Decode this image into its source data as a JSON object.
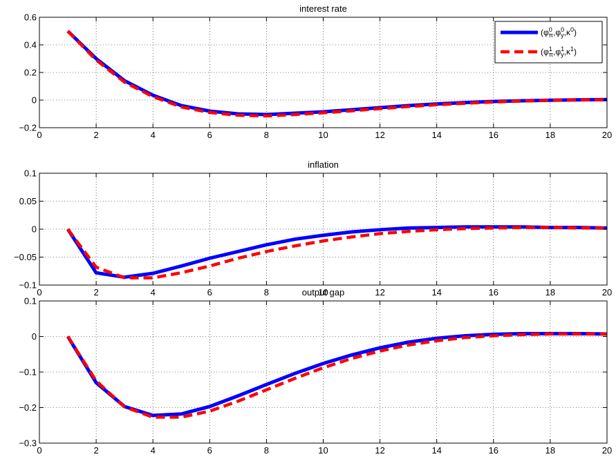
{
  "legend": {
    "placement": "top-right",
    "entries": [
      {
        "base": "(φ",
        "sup_pi": "0",
        "sub_pi": "π",
        "comma1": ",φ",
        "sup_y": "0",
        "sub_y": "y",
        "comma2": ",κ",
        "sup_k": "0",
        "close": ")",
        "color": "#0000ff",
        "style": "solid"
      },
      {
        "base": "(φ",
        "sup_pi": "1",
        "sub_pi": "π",
        "comma1": ",φ",
        "sup_y": "1",
        "sub_y": "y",
        "comma2": ",κ",
        "sup_k": "1",
        "close": ")",
        "color": "#ff0000",
        "style": "dashed"
      }
    ]
  },
  "chart_data": [
    {
      "type": "line",
      "title": "interest rate",
      "xlim": [
        0,
        20
      ],
      "ylim": [
        -0.2,
        0.6
      ],
      "xticks": [
        0,
        2,
        4,
        6,
        8,
        10,
        12,
        14,
        16,
        18,
        20
      ],
      "yticks": [
        -0.2,
        0,
        0.2,
        0.4,
        0.6
      ],
      "ytick_labels": [
        "−0.2",
        "0",
        "0.2",
        "0.4",
        "0.6"
      ],
      "grid": true,
      "x": [
        1,
        2,
        3,
        4,
        5,
        6,
        7,
        8,
        9,
        10,
        11,
        12,
        13,
        14,
        15,
        16,
        17,
        18,
        19,
        20
      ],
      "series": [
        {
          "color": "#0000ff",
          "style": "solid",
          "values": [
            0.5,
            0.3,
            0.14,
            0.035,
            -0.04,
            -0.08,
            -0.1,
            -0.105,
            -0.095,
            -0.085,
            -0.07,
            -0.055,
            -0.04,
            -0.028,
            -0.018,
            -0.01,
            -0.005,
            -0.001,
            0.002,
            0.004
          ]
        },
        {
          "color": "#ff0000",
          "style": "dashed",
          "values": [
            0.5,
            0.29,
            0.13,
            0.025,
            -0.05,
            -0.09,
            -0.11,
            -0.115,
            -0.105,
            -0.092,
            -0.078,
            -0.062,
            -0.047,
            -0.034,
            -0.023,
            -0.014,
            -0.007,
            -0.002,
            0.001,
            0.003
          ]
        }
      ]
    },
    {
      "type": "line",
      "title": "inflation",
      "xlim": [
        0,
        20
      ],
      "ylim": [
        -0.1,
        0.1
      ],
      "xticks": [
        0,
        2,
        4,
        6,
        8,
        10,
        12,
        14,
        16,
        18,
        20
      ],
      "yticks": [
        -0.1,
        -0.05,
        0,
        0.05,
        0.1
      ],
      "ytick_labels": [
        "−0.1",
        "−0.05",
        "0",
        "0.05",
        "0.1"
      ],
      "grid": true,
      "x": [
        1,
        2,
        3,
        4,
        5,
        6,
        7,
        8,
        9,
        10,
        11,
        12,
        13,
        14,
        15,
        16,
        17,
        18,
        19,
        20
      ],
      "series": [
        {
          "color": "#0000ff",
          "style": "solid",
          "values": [
            0,
            -0.078,
            -0.086,
            -0.079,
            -0.066,
            -0.052,
            -0.04,
            -0.028,
            -0.018,
            -0.011,
            -0.005,
            -0.001,
            0.002,
            0.003,
            0.004,
            0.004,
            0.004,
            0.003,
            0.003,
            0.002
          ]
        },
        {
          "color": "#ff0000",
          "style": "dashed",
          "values": [
            0,
            -0.068,
            -0.087,
            -0.087,
            -0.078,
            -0.066,
            -0.052,
            -0.04,
            -0.03,
            -0.021,
            -0.014,
            -0.008,
            -0.004,
            -0.001,
            0.001,
            0.002,
            0.003,
            0.003,
            0.002,
            0.002
          ]
        }
      ]
    },
    {
      "type": "line",
      "title": "output gap",
      "xlim": [
        0,
        20
      ],
      "ylim": [
        -0.3,
        0.1
      ],
      "xticks": [
        0,
        2,
        4,
        6,
        8,
        10,
        12,
        14,
        16,
        18,
        20
      ],
      "yticks": [
        -0.3,
        -0.2,
        -0.1,
        0,
        0.1
      ],
      "ytick_labels": [
        "−0.3",
        "−0.2",
        "−0.1",
        "0",
        "0.1"
      ],
      "grid": true,
      "x": [
        1,
        2,
        3,
        4,
        5,
        6,
        7,
        8,
        9,
        10,
        11,
        12,
        13,
        14,
        15,
        16,
        17,
        18,
        19,
        20
      ],
      "series": [
        {
          "color": "#0000ff",
          "style": "solid",
          "values": [
            0,
            -0.13,
            -0.197,
            -0.222,
            -0.218,
            -0.197,
            -0.167,
            -0.135,
            -0.104,
            -0.076,
            -0.052,
            -0.032,
            -0.016,
            -0.005,
            0.002,
            0.006,
            0.008,
            0.008,
            0.008,
            0.007
          ]
        },
        {
          "color": "#ff0000",
          "style": "dashed",
          "values": [
            0,
            -0.125,
            -0.198,
            -0.227,
            -0.227,
            -0.21,
            -0.182,
            -0.15,
            -0.118,
            -0.088,
            -0.062,
            -0.041,
            -0.024,
            -0.012,
            -0.003,
            0.002,
            0.005,
            0.007,
            0.007,
            0.007
          ]
        }
      ]
    }
  ]
}
